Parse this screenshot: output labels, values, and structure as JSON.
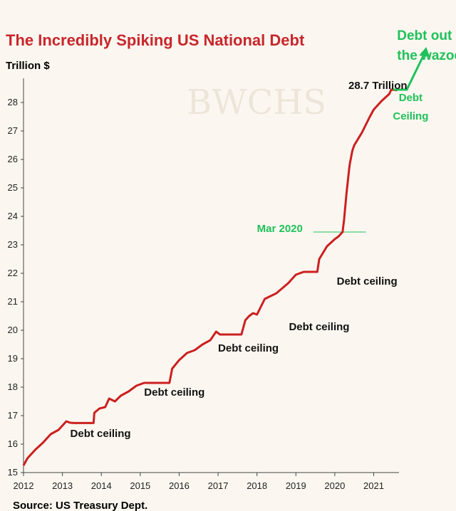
{
  "colors": {
    "background": "#fbf7f0",
    "title": "#c8262b",
    "line": "#cc1f1f",
    "green": "#1fc15a",
    "text": "#111111"
  },
  "watermark": "BWCHS",
  "chart_data": {
    "type": "line",
    "title": "The Incredibly Spiking US National Debt",
    "ylabel": "Trillion $",
    "xlabel": "",
    "source": "Source: US Treasury Dept.",
    "xlim": [
      2012,
      2021.65
    ],
    "ylim": [
      15,
      28.6
    ],
    "x_ticks": [
      "2012",
      "2013",
      "2014",
      "2015",
      "2016",
      "2017",
      "2018",
      "2019",
      "2020",
      "2021"
    ],
    "y_ticks": [
      "15",
      "16",
      "17",
      "18",
      "19",
      "20",
      "21",
      "22",
      "23",
      "24",
      "25",
      "26",
      "27",
      "28"
    ],
    "grid": false,
    "series": [
      {
        "x": [
          2012.0,
          2012.1,
          2012.3,
          2012.5,
          2012.7,
          2012.9,
          2013.0,
          2013.1,
          2013.2,
          2013.3,
          2013.8,
          2013.82,
          2013.95,
          2014.1,
          2014.2,
          2014.35,
          2014.5,
          2014.7,
          2014.9,
          2015.1,
          2015.25,
          2015.5,
          2015.75,
          2015.82,
          2016.0,
          2016.2,
          2016.4,
          2016.6,
          2016.8,
          2016.95,
          2017.05,
          2017.15,
          2017.6,
          2017.7,
          2017.8,
          2017.9,
          2018.0,
          2018.2,
          2018.5,
          2018.8,
          2019.0,
          2019.2,
          2019.55,
          2019.6,
          2019.8,
          2020.0,
          2020.1,
          2020.2,
          2020.24,
          2020.3,
          2020.38,
          2020.45,
          2020.5,
          2020.7,
          2020.9,
          2021.0,
          2021.2,
          2021.4,
          2021.45,
          2021.6
        ],
        "values": [
          15.25,
          15.5,
          15.8,
          16.05,
          16.35,
          16.5,
          16.65,
          16.8,
          16.75,
          16.74,
          16.74,
          17.1,
          17.25,
          17.3,
          17.6,
          17.5,
          17.7,
          17.85,
          18.05,
          18.15,
          18.15,
          18.15,
          18.15,
          18.65,
          18.95,
          19.2,
          19.3,
          19.5,
          19.65,
          19.95,
          19.85,
          19.85,
          19.85,
          20.35,
          20.5,
          20.6,
          20.55,
          21.1,
          21.3,
          21.65,
          21.95,
          22.05,
          22.05,
          22.5,
          22.95,
          23.2,
          23.3,
          23.45,
          23.9,
          24.8,
          25.8,
          26.3,
          26.5,
          26.95,
          27.5,
          27.75,
          28.05,
          28.3,
          28.45,
          28.43
        ]
      }
    ],
    "annotations": [
      {
        "text": "28.7 Trillion",
        "x": 2020.35,
        "y": 28.48,
        "color": "text"
      },
      {
        "text": "Debt",
        "x": 2021.95,
        "y": 28.05,
        "color": "green"
      },
      {
        "text": "Ceiling",
        "x": 2021.95,
        "y": 27.4,
        "color": "green"
      },
      {
        "text": "Debt out",
        "x": 2021.6,
        "y": 30.2,
        "color": "green"
      },
      {
        "text": "the wazoo",
        "x": 2021.6,
        "y": 29.5,
        "color": "green"
      },
      {
        "text": "Mar 2020",
        "x": 2018.0,
        "y": 23.45,
        "color": "green"
      },
      {
        "text": "Debt ceiling",
        "x": 2013.2,
        "y": 16.25,
        "color": "text"
      },
      {
        "text": "Debt ceiling",
        "x": 2015.1,
        "y": 17.7,
        "color": "text"
      },
      {
        "text": "Debt ceiling",
        "x": 2017.0,
        "y": 19.25,
        "color": "text"
      },
      {
        "text": "Debt ceiling",
        "x": 2018.82,
        "y": 20.0,
        "color": "text"
      },
      {
        "text": "Debt ceiling",
        "x": 2020.05,
        "y": 21.6,
        "color": "text"
      }
    ]
  }
}
